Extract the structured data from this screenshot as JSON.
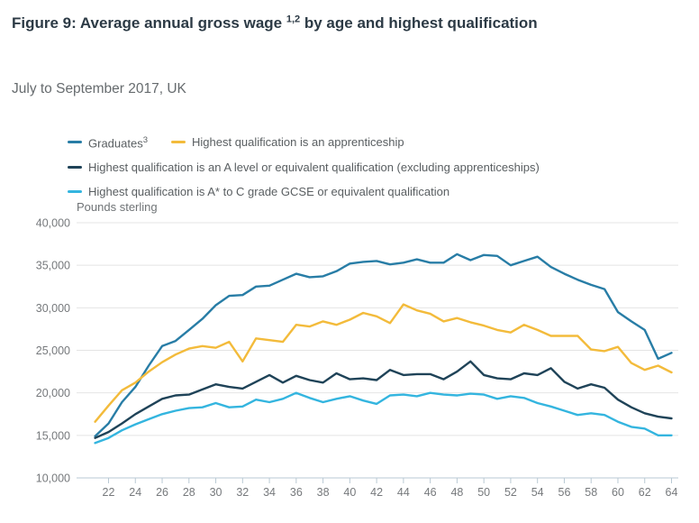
{
  "figure": {
    "title_prefix": "Figure 9: Average annual gross wage ",
    "title_superscript": "1,2",
    "title_suffix": " by age and highest qualification",
    "subtitle": "July to September 2017, UK"
  },
  "legend": {
    "items": [
      {
        "label": "Graduates",
        "sup": "3"
      },
      {
        "label": "Highest qualification is an apprenticeship",
        "sup": ""
      },
      {
        "label": "Highest qualification is an A level or equivalent qualification (excluding apprenticeships)",
        "sup": ""
      },
      {
        "label": "Highest qualification is A* to C grade GCSE or equivalent qualification",
        "sup": ""
      }
    ]
  },
  "colors": {
    "title": "#2C3A45",
    "subtitle": "#666B6E",
    "gridline": "#E4E4E4",
    "axis": "#B9C9D4",
    "tick_text": "#76797C"
  },
  "chart_data": {
    "type": "line",
    "title": "Figure 9: Average annual gross wage by age and highest qualification",
    "subtitle": "July to September 2017, UK",
    "xlabel": "",
    "ylabel": "Pounds sterling",
    "ylim": [
      10000,
      40000
    ],
    "ytick_step": 5000,
    "yticks": [
      10000,
      15000,
      20000,
      25000,
      30000,
      35000,
      40000
    ],
    "xticks": [
      22,
      24,
      26,
      28,
      30,
      32,
      34,
      36,
      38,
      40,
      42,
      44,
      46,
      48,
      50,
      52,
      54,
      56,
      58,
      60,
      62,
      64
    ],
    "grid": true,
    "legend_position": "top-left",
    "x": [
      21,
      22,
      23,
      24,
      25,
      26,
      27,
      28,
      29,
      30,
      31,
      32,
      33,
      34,
      35,
      36,
      37,
      38,
      39,
      40,
      41,
      42,
      43,
      44,
      45,
      46,
      47,
      48,
      49,
      50,
      51,
      52,
      53,
      54,
      55,
      56,
      57,
      58,
      59,
      60,
      61,
      62,
      63,
      64
    ],
    "series": [
      {
        "name": "Graduates",
        "color": "#287DA6",
        "values": [
          14900,
          16400,
          18900,
          20700,
          23200,
          25500,
          26100,
          27400,
          28700,
          30300,
          31400,
          31500,
          32500,
          32600,
          33300,
          34000,
          33600,
          33700,
          34300,
          35200,
          35400,
          35500,
          35100,
          35300,
          35700,
          35300,
          35300,
          36300,
          35600,
          36200,
          36100,
          35000,
          35500,
          36000,
          34800,
          34000,
          33300,
          32700,
          32200,
          29500,
          28400,
          27400,
          24000,
          24700
        ]
      },
      {
        "name": "Highest qualification is an apprenticeship",
        "color": "#F3BB3B",
        "values": [
          16600,
          18500,
          20300,
          21200,
          22500,
          23600,
          24500,
          25200,
          25500,
          25300,
          26000,
          23700,
          26400,
          26200,
          26000,
          28000,
          27800,
          28400,
          28000,
          28600,
          29400,
          29000,
          28200,
          30400,
          29700,
          29300,
          28400,
          28800,
          28300,
          27900,
          27400,
          27100,
          28000,
          27400,
          26700,
          26700,
          26700,
          25100,
          24900,
          25400,
          23500,
          22700,
          23200,
          22400
        ]
      },
      {
        "name": "Highest qualification is an A level or equivalent qualification (excluding apprenticeships)",
        "color": "#1F4358",
        "values": [
          14700,
          15400,
          16400,
          17500,
          18400,
          19300,
          19700,
          19800,
          20400,
          21000,
          20700,
          20500,
          21300,
          22100,
          21200,
          22000,
          21500,
          21200,
          22300,
          21600,
          21700,
          21500,
          22700,
          22100,
          22200,
          22200,
          21600,
          22500,
          23700,
          22100,
          21700,
          21600,
          22300,
          22100,
          22900,
          21300,
          20500,
          21000,
          20600,
          19200,
          18300,
          17600,
          17200,
          17000
        ]
      },
      {
        "name": "Highest qualification is A* to C grade GCSE or equivalent qualification",
        "color": "#34B5DF",
        "values": [
          14100,
          14700,
          15600,
          16300,
          16900,
          17500,
          17900,
          18200,
          18300,
          18800,
          18300,
          18400,
          19200,
          18900,
          19300,
          20000,
          19400,
          18900,
          19300,
          19600,
          19100,
          18700,
          19700,
          19800,
          19600,
          20000,
          19800,
          19700,
          19900,
          19800,
          19300,
          19600,
          19400,
          18800,
          18400,
          17900,
          17400,
          17600,
          17400,
          16600,
          16000,
          15800,
          15000,
          15000
        ]
      }
    ]
  }
}
